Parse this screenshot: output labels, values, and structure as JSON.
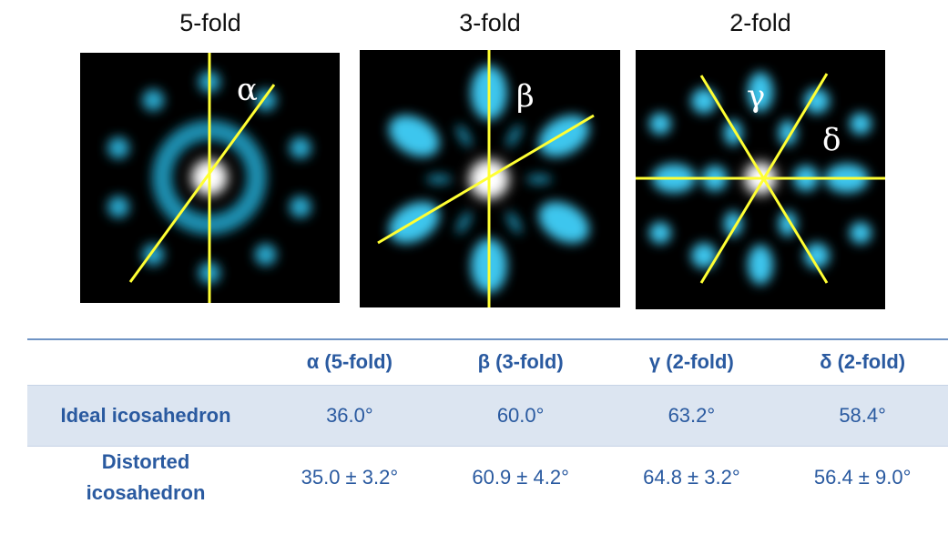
{
  "panels": [
    {
      "title": "5-fold",
      "labels": [
        "α"
      ]
    },
    {
      "title": "3-fold",
      "labels": [
        "β"
      ]
    },
    {
      "title": "2-fold",
      "labels": [
        "γ",
        "δ"
      ]
    }
  ],
  "table": {
    "columns": [
      "α (5-fold)",
      "β (3-fold)",
      "γ (2-fold)",
      "δ (2-fold)"
    ],
    "rows": [
      {
        "label": "Ideal icosahedron",
        "cells": [
          "36.0°",
          "60.0°",
          "63.2°",
          "58.4°"
        ]
      },
      {
        "label": "Distorted icosahedron",
        "cells": [
          "35.0 ± 3.2°",
          "60.9 ± 4.2°",
          "64.8 ± 3.2°",
          "56.4 ± 9.0°"
        ]
      }
    ]
  }
}
